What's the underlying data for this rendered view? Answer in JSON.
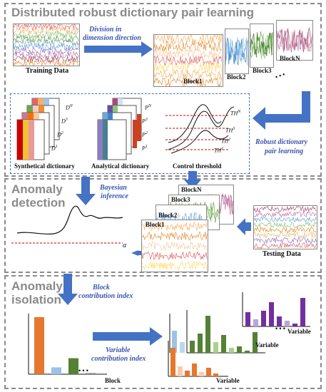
{
  "sections": {
    "s1_title": "Distributed robust dictionary pair learning",
    "s2_title_line1": "Anomaly",
    "s2_title_line2": "detection",
    "s3_title_line1": "Anomaly",
    "s3_title_line2": "isolation"
  },
  "labels": {
    "training_data": "Training Data",
    "division_line1": "Division in",
    "division_line2": "dimension direction",
    "block1": "Block1",
    "block2": "Block2",
    "block3": "Block3",
    "blockN": "BlockN",
    "robust_line1": "Robust dictionary",
    "robust_line2": "pair learning",
    "synthetical": "Synthetical dictionary",
    "analytical": "Analytical dictionary",
    "control_threshold": "Control threshold",
    "bayesian_line1": "Bayesian",
    "bayesian_line2": "inference",
    "testing_data": "Testing Data",
    "alpha": "α",
    "block_contrib_line1": "Block",
    "block_contrib_line2": "contribution index",
    "variable_contrib_line1": "Variable",
    "variable_contrib_line2": "contribution index",
    "block_axis": "Block",
    "variable_axis_1": "Variable",
    "variable_axis_2": "Variable",
    "variable_axis_3": "Variable",
    "dots": "• • •"
  },
  "math": {
    "D_N": "D",
    "D_N_sup": "N",
    "D_3": "D",
    "D_3_sup": "3",
    "D_2": "D",
    "D_2_sup": "2",
    "D_1": "D",
    "D_1_sup": "1",
    "P_N": "P",
    "P_N_sup": "N",
    "P_3": "P",
    "P_3_sup": "3",
    "P_2": "P",
    "P_2_sup": "2",
    "P_1": "P",
    "P_1_sup": "1",
    "TH_N": "TH",
    "TH_N_sup": "N",
    "TH_3": "TH",
    "TH_3_sup": "3",
    "TH_2": "TH",
    "TH_2_sup": "2",
    "TH_1": "TH",
    "TH_1_sup": "1"
  },
  "block_contrib": {
    "values": [
      1.0,
      0.12,
      0.28,
      0.02
    ],
    "colors": [
      "#e6772e",
      "#9cc3e6",
      "#548235",
      "#888888"
    ]
  },
  "colors": {
    "arrow": "#4472c4",
    "frame": "#8a8a8a",
    "accent_blue": "#3a56b0"
  }
}
